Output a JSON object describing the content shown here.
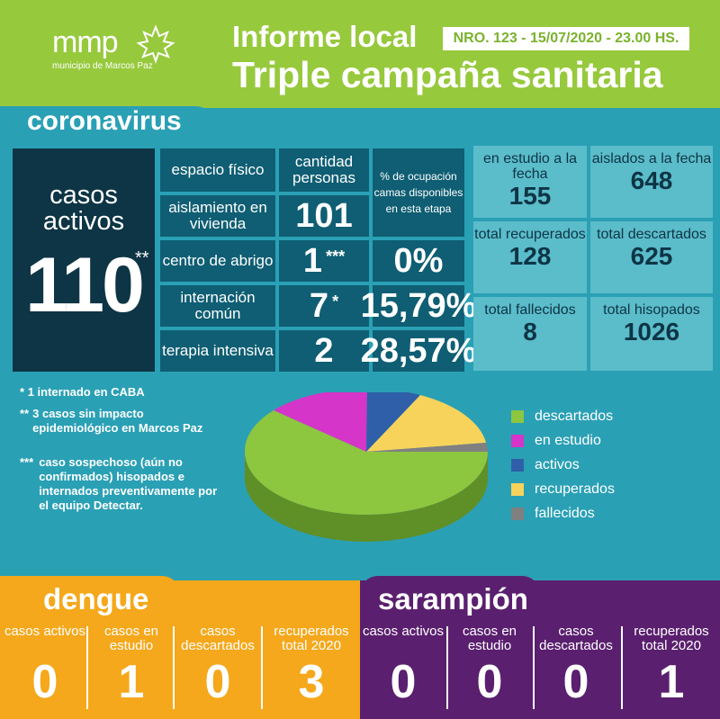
{
  "header": {
    "logo": "mmp",
    "logo_sub": "municipio de Marcos Paz",
    "title_line1": "Informe local",
    "title_line2": "Triple campaña sanitaria",
    "badge": "NRO. 123 - 15/07/2020 - 23.00 HS."
  },
  "coronavirus": {
    "section_title": "coronavirus",
    "casos_activos_label": "casos activos",
    "casos_activos_value": "110",
    "casos_activos_mark": "**",
    "table_headers": {
      "espacio": "espacio físico",
      "cantidad": "cantidad personas",
      "ocupacion": "% de ocupación camas disponibles en esta etapa"
    },
    "rows": [
      {
        "label": "aislamiento en vivienda",
        "value": "101",
        "mark": "",
        "pct": ""
      },
      {
        "label": "centro de abrigo",
        "value": "1",
        "mark": "***",
        "pct": "0%"
      },
      {
        "label": "internación común",
        "value": "7",
        "mark": "*",
        "pct": "15,79%"
      },
      {
        "label": "terapia intensiva",
        "value": "2",
        "mark": "",
        "pct": "28,57%"
      }
    ],
    "stats": [
      {
        "label": "en estudio a la fecha",
        "value": "155"
      },
      {
        "label": "aislados a la fecha",
        "value": "648"
      },
      {
        "label": "total recuperados",
        "value": "128"
      },
      {
        "label": "total descartados",
        "value": "625"
      },
      {
        "label": "total fallecidos",
        "value": "8"
      },
      {
        "label": "total hisopados",
        "value": "1026"
      }
    ],
    "notes": [
      {
        "mark": "*",
        "text": "1 internado en CABA"
      },
      {
        "mark": "**",
        "text": "3 casos sin impacto epidemiológico en Marcos Paz"
      },
      {
        "mark": "***",
        "text": "caso sospechoso (aún no confirmados) hisopados e internados preventivamente por el equipo Detectar."
      }
    ],
    "legend": [
      {
        "label": "descartados",
        "color": "#8dc63f"
      },
      {
        "label": "en estudio",
        "color": "#d535c8"
      },
      {
        "label": "activos",
        "color": "#2e5fa8"
      },
      {
        "label": "recuperados",
        "color": "#f7d35c"
      },
      {
        "label": "fallecidos",
        "color": "#808080"
      }
    ]
  },
  "dengue": {
    "title": "dengue",
    "items": [
      {
        "label": "casos activos",
        "value": "0"
      },
      {
        "label": "casos en estudio",
        "value": "1"
      },
      {
        "label": "casos descartados",
        "value": "0"
      },
      {
        "label": "recuperados total 2020",
        "value": "3"
      }
    ]
  },
  "sarampion": {
    "title": "sarampión",
    "items": [
      {
        "label": "casos activos",
        "value": "0"
      },
      {
        "label": "casos en estudio",
        "value": "0"
      },
      {
        "label": "casos descartados",
        "value": "0"
      },
      {
        "label": "recuperados total 2020",
        "value": "1"
      }
    ]
  }
}
